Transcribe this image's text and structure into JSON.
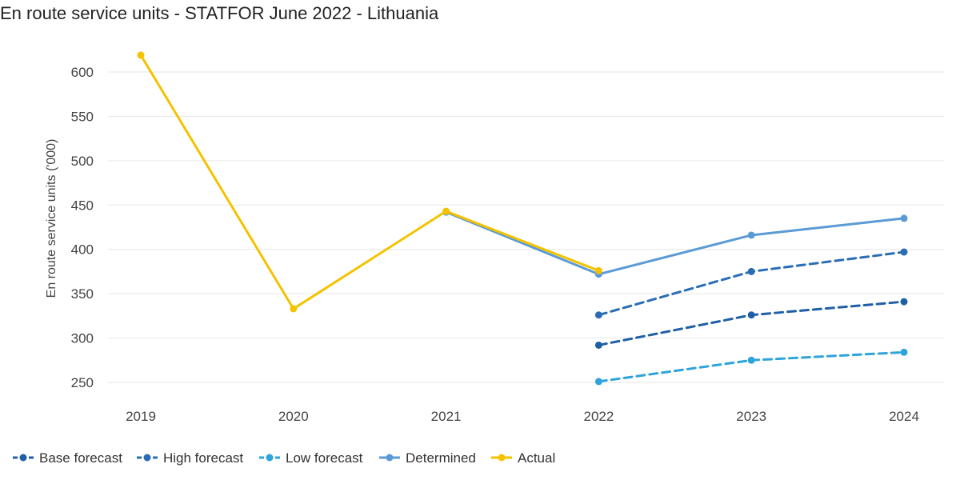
{
  "chart_data": {
    "type": "line",
    "title": "En route service units - STATFOR June 2022 - Lithuania",
    "xlabel": "",
    "ylabel": "En route service units ('000)",
    "categories": [
      "2019",
      "2020",
      "2021",
      "2022",
      "2023",
      "2024"
    ],
    "ylim": [
      240,
      640
    ],
    "yticks": [
      250,
      300,
      350,
      400,
      450,
      500,
      550,
      600
    ],
    "grid": true,
    "legend_position": "bottom-left",
    "series": [
      {
        "name": "Base forecast",
        "color": "#1f5fa6",
        "dashed": true,
        "values": [
          null,
          null,
          null,
          292,
          326,
          341
        ]
      },
      {
        "name": "High forecast",
        "color": "#2a6db5",
        "dashed": true,
        "values": [
          null,
          null,
          null,
          326,
          375,
          397
        ]
      },
      {
        "name": "Low forecast",
        "color": "#2ea3dc",
        "dashed": true,
        "values": [
          null,
          null,
          null,
          251,
          275,
          284
        ]
      },
      {
        "name": "Determined",
        "color": "#5b9bd5",
        "dashed": false,
        "values": [
          null,
          null,
          442,
          372,
          416,
          435
        ]
      },
      {
        "name": "Actual",
        "color": "#f5c200",
        "dashed": false,
        "values": [
          619,
          333,
          443,
          376,
          null,
          null
        ]
      }
    ]
  }
}
